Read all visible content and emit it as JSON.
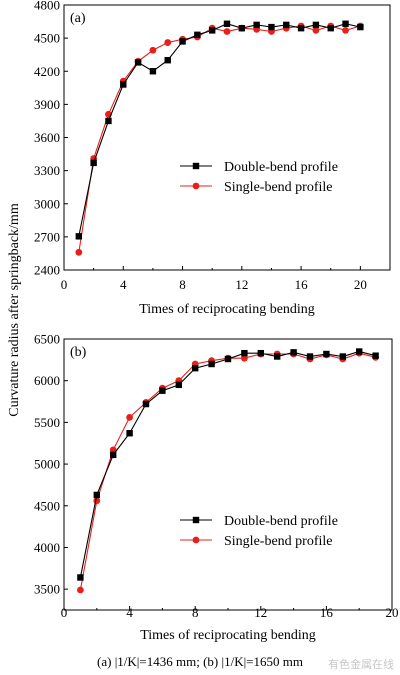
{
  "shared_ylabel": "Curvature radius after springback/mm",
  "caption": "(a) |1/K|=1436 mm; (b) |1/K|=1650 mm",
  "watermark": "有色金属在线",
  "colors": {
    "series_a": "#000000",
    "series_b": "#e8201c"
  },
  "chart_data": [
    {
      "type": "line",
      "panel_label": "(a)",
      "xlabel": "Times of reciprocating bending",
      "ylabel": "Curvature radius after springback/mm",
      "xlim": [
        0,
        22
      ],
      "ylim": [
        2400,
        4800
      ],
      "xticks": [
        0,
        4,
        8,
        12,
        16,
        20
      ],
      "yticks": [
        2400,
        2700,
        3000,
        3300,
        3600,
        3900,
        4200,
        4500,
        4800
      ],
      "legend_position": "middle-right",
      "series": [
        {
          "name": "Double-bend profile",
          "marker": "square",
          "color": "#000000",
          "x": [
            1,
            2,
            3,
            4,
            5,
            6,
            7,
            8,
            9,
            10,
            11,
            12,
            13,
            14,
            15,
            16,
            17,
            18,
            19,
            20
          ],
          "y": [
            2705,
            3370,
            3750,
            4080,
            4280,
            4200,
            4300,
            4470,
            4530,
            4570,
            4630,
            4590,
            4620,
            4600,
            4620,
            4590,
            4620,
            4590,
            4630,
            4600
          ]
        },
        {
          "name": "Single-bend profile",
          "marker": "circle",
          "color": "#e8201c",
          "x": [
            1,
            2,
            3,
            4,
            5,
            6,
            7,
            8,
            9,
            10,
            11,
            12,
            13,
            14,
            15,
            16,
            17,
            18,
            19,
            20
          ],
          "y": [
            2560,
            3410,
            3810,
            4110,
            4290,
            4390,
            4460,
            4490,
            4510,
            4590,
            4560,
            4590,
            4580,
            4560,
            4590,
            4610,
            4570,
            4610,
            4570,
            4610
          ]
        }
      ]
    },
    {
      "type": "line",
      "panel_label": "(b)",
      "xlabel": "Times of reciprocating bending",
      "ylabel": "Curvature radius after springback/mm",
      "xlim": [
        0,
        20
      ],
      "ylim": [
        3250,
        6500
      ],
      "xticks": [
        0,
        4,
        8,
        12,
        16,
        20
      ],
      "yticks": [
        3500,
        4000,
        4500,
        5000,
        5500,
        6000,
        6500
      ],
      "legend_position": "lower-right",
      "series": [
        {
          "name": "Double-bend profile",
          "marker": "square",
          "color": "#000000",
          "x": [
            1,
            2,
            3,
            4,
            5,
            6,
            7,
            8,
            9,
            10,
            11,
            12,
            13,
            14,
            15,
            16,
            17,
            18,
            19
          ],
          "y": [
            3640,
            4630,
            5110,
            5370,
            5720,
            5880,
            5950,
            6150,
            6200,
            6260,
            6330,
            6330,
            6290,
            6340,
            6290,
            6320,
            6290,
            6350,
            6300
          ]
        },
        {
          "name": "Single-bend profile",
          "marker": "circle",
          "color": "#e8201c",
          "x": [
            1,
            2,
            3,
            4,
            5,
            6,
            7,
            8,
            9,
            10,
            11,
            12,
            13,
            14,
            15,
            16,
            17,
            18,
            19
          ],
          "y": [
            3490,
            4560,
            5170,
            5560,
            5740,
            5910,
            6000,
            6200,
            6240,
            6270,
            6270,
            6320,
            6320,
            6320,
            6260,
            6310,
            6260,
            6330,
            6280
          ]
        }
      ]
    }
  ]
}
